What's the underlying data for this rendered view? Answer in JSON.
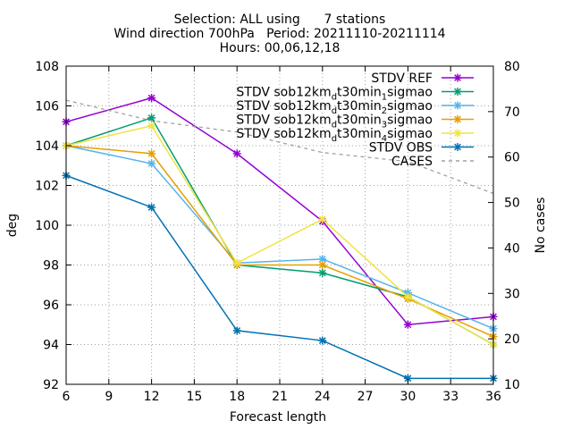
{
  "chart_data": {
    "type": "line",
    "title_lines": [
      "Selection: ALL using      7 stations",
      "Wind direction 700hPa   Period: 20211110-20211114",
      "Hours: 00,06,12,18"
    ],
    "xlabel": "Forecast length",
    "ylabel": "deg",
    "y2label": "No cases",
    "x": [
      6,
      12,
      18,
      24,
      30,
      36
    ],
    "xlim": [
      6,
      36
    ],
    "xticks": [
      6,
      9,
      12,
      15,
      18,
      21,
      24,
      27,
      30,
      33,
      36
    ],
    "ylim": [
      92,
      108
    ],
    "yticks": [
      92,
      94,
      96,
      98,
      100,
      102,
      104,
      106,
      108
    ],
    "y2lim": [
      10,
      80
    ],
    "y2ticks": [
      10,
      20,
      30,
      40,
      50,
      60,
      70,
      80
    ],
    "grid": true,
    "legend_position": "top-right",
    "series": [
      {
        "name": "STDV REF",
        "label_main": "STDV REF",
        "color": "#9400d3",
        "marker": "star",
        "axis": "y",
        "values": [
          105.2,
          106.4,
          103.6,
          100.2,
          95.0,
          95.4
        ]
      },
      {
        "name": "STDV sob12km_dt30min_1sigmao",
        "label_main": "STDV sob12km",
        "label_sub": "d",
        "label_mid": "t30min",
        "label_sub2": "1",
        "label_end": "sigmao",
        "color": "#009e73",
        "marker": "star",
        "axis": "y",
        "values": [
          104.0,
          105.4,
          98.0,
          97.6,
          96.4,
          94.0
        ]
      },
      {
        "name": "STDV sob12km_dt30min_2sigmao",
        "label_main": "STDV sob12km",
        "label_sub": "d",
        "label_mid": "t30min",
        "label_sub2": "2",
        "label_end": "sigmao",
        "color": "#56b4e9",
        "marker": "star",
        "axis": "y",
        "values": [
          104.0,
          103.1,
          98.1,
          98.3,
          96.6,
          94.8
        ]
      },
      {
        "name": "STDV sob12km_dt30min_3sigmao",
        "label_main": "STDV sob12km",
        "label_sub": "d",
        "label_mid": "t30min",
        "label_sub2": "3",
        "label_end": "sigmao",
        "color": "#e69f00",
        "marker": "star",
        "axis": "y",
        "values": [
          104.0,
          103.6,
          98.0,
          98.0,
          96.3,
          94.4
        ]
      },
      {
        "name": "STDV sob12km_dt30min_4sigmao",
        "label_main": "STDV sob12km",
        "label_sub": "d",
        "label_mid": "t30min",
        "label_sub2": "4",
        "label_end": "sigmao",
        "color": "#f0e442",
        "marker": "star",
        "axis": "y",
        "values": [
          104.0,
          105.0,
          98.1,
          100.3,
          96.4,
          94.0
        ]
      },
      {
        "name": "STDV OBS",
        "label_main": "STDV OBS",
        "color": "#0072b2",
        "marker": "star",
        "axis": "y",
        "values": [
          102.5,
          100.9,
          94.7,
          94.2,
          92.3,
          92.3
        ]
      },
      {
        "name": "CASES",
        "label_main": "CASES",
        "color": "#a0a0a0",
        "marker": "none",
        "dashed": true,
        "axis": "y2",
        "values": [
          72.5,
          68.0,
          65.5,
          61.0,
          59.0,
          52.0
        ]
      }
    ]
  }
}
